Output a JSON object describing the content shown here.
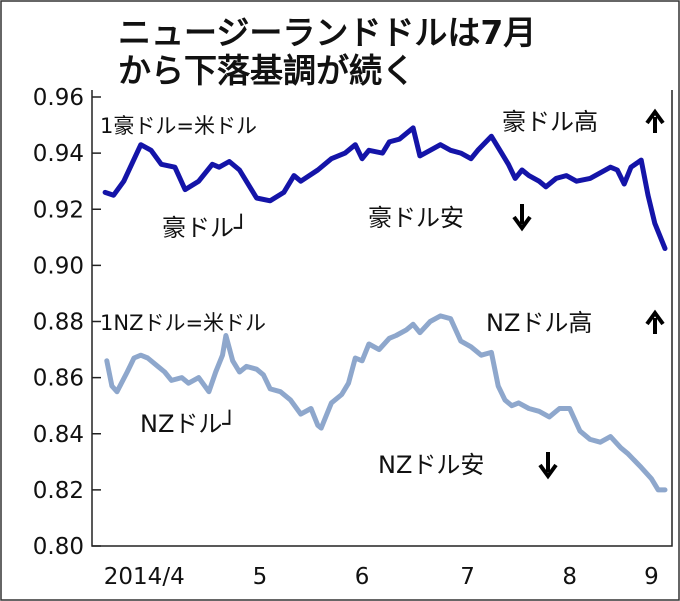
{
  "chart_data": {
    "type": "line",
    "title": [
      "ニュージーランドドルは7月",
      "から下落基調が続く"
    ],
    "xlabel": "",
    "ylabel": "",
    "x_unit": "days since 2014/4/1 (approx.)",
    "xlim": [
      0,
      168
    ],
    "ylim": [
      0.8,
      0.96
    ],
    "yticks": [
      "0.96",
      "0.94",
      "0.92",
      "0.90",
      "0.88",
      "0.86",
      "0.84",
      "0.82",
      "0.80"
    ],
    "xticks": [
      {
        "label": "2014/4",
        "day": 13
      },
      {
        "label": "5",
        "day": 47
      },
      {
        "label": "6",
        "day": 77
      },
      {
        "label": "7",
        "day": 108
      },
      {
        "label": "8",
        "day": 138
      },
      {
        "label": "9",
        "day": 162
      }
    ],
    "grid": false,
    "colors": {
      "aud": "#1414a8",
      "nzd": "#8ea7cc"
    },
    "annotations": {
      "aud_unit": "1豪ドル=米ドル",
      "aud_label": "豪ドル┘",
      "aud_up": "豪ドル高",
      "aud_down": "豪ドル安",
      "nzd_unit": "1NZドル=米ドル",
      "nzd_label": "NZドル┘",
      "nzd_up": "NZドル高",
      "nzd_down": "NZドル安"
    },
    "series": [
      {
        "name": "豪ドル",
        "points": [
          [
            1.5,
            0.926
          ],
          [
            4,
            0.925
          ],
          [
            7,
            0.93
          ],
          [
            12,
            0.943
          ],
          [
            15,
            0.941
          ],
          [
            18,
            0.936
          ],
          [
            22,
            0.935
          ],
          [
            25,
            0.927
          ],
          [
            29,
            0.93
          ],
          [
            33,
            0.936
          ],
          [
            35,
            0.935
          ],
          [
            38,
            0.937
          ],
          [
            41,
            0.934
          ],
          [
            46,
            0.924
          ],
          [
            50,
            0.923
          ],
          [
            54,
            0.926
          ],
          [
            57,
            0.932
          ],
          [
            59,
            0.93
          ],
          [
            64,
            0.934
          ],
          [
            68,
            0.938
          ],
          [
            72,
            0.94
          ],
          [
            75,
            0.943
          ],
          [
            77,
            0.938
          ],
          [
            79,
            0.941
          ],
          [
            83,
            0.94
          ],
          [
            85,
            0.944
          ],
          [
            88,
            0.945
          ],
          [
            92,
            0.949
          ],
          [
            94,
            0.939
          ],
          [
            97,
            0.941
          ],
          [
            100,
            0.943
          ],
          [
            103,
            0.941
          ],
          [
            106,
            0.94
          ],
          [
            109,
            0.938
          ],
          [
            111,
            0.941
          ],
          [
            115,
            0.946
          ],
          [
            118,
            0.94
          ],
          [
            120,
            0.936
          ],
          [
            122,
            0.931
          ],
          [
            124,
            0.934
          ],
          [
            126,
            0.932
          ],
          [
            129,
            0.93
          ],
          [
            131,
            0.928
          ],
          [
            134,
            0.931
          ],
          [
            137,
            0.932
          ],
          [
            140,
            0.93
          ],
          [
            144,
            0.931
          ],
          [
            147,
            0.933
          ],
          [
            150,
            0.935
          ],
          [
            152,
            0.934
          ],
          [
            154,
            0.929
          ],
          [
            156,
            0.935
          ],
          [
            159,
            0.9375
          ],
          [
            161,
            0.925
          ],
          [
            163,
            0.915
          ],
          [
            166,
            0.906
          ]
        ]
      },
      {
        "name": "NZドル",
        "points": [
          [
            2,
            0.866
          ],
          [
            3.5,
            0.857
          ],
          [
            5,
            0.855
          ],
          [
            8,
            0.862
          ],
          [
            10,
            0.867
          ],
          [
            12,
            0.868
          ],
          [
            14,
            0.867
          ],
          [
            17,
            0.864
          ],
          [
            19,
            0.862
          ],
          [
            21,
            0.859
          ],
          [
            24,
            0.86
          ],
          [
            26,
            0.858
          ],
          [
            29,
            0.86
          ],
          [
            32,
            0.855
          ],
          [
            34,
            0.862
          ],
          [
            36,
            0.868
          ],
          [
            37,
            0.875
          ],
          [
            39,
            0.866
          ],
          [
            41,
            0.862
          ],
          [
            43,
            0.864
          ],
          [
            46,
            0.863
          ],
          [
            48,
            0.861
          ],
          [
            50,
            0.856
          ],
          [
            53,
            0.855
          ],
          [
            56,
            0.852
          ],
          [
            59,
            0.847
          ],
          [
            62,
            0.849
          ],
          [
            64,
            0.843
          ],
          [
            65,
            0.842
          ],
          [
            68,
            0.851
          ],
          [
            71,
            0.854
          ],
          [
            73,
            0.858
          ],
          [
            75,
            0.867
          ],
          [
            77,
            0.866
          ],
          [
            79,
            0.872
          ],
          [
            82,
            0.87
          ],
          [
            85,
            0.874
          ],
          [
            87,
            0.875
          ],
          [
            90,
            0.877
          ],
          [
            92,
            0.879
          ],
          [
            94,
            0.876
          ],
          [
            97,
            0.88
          ],
          [
            100,
            0.882
          ],
          [
            103,
            0.881
          ],
          [
            106,
            0.873
          ],
          [
            109,
            0.871
          ],
          [
            112,
            0.868
          ],
          [
            115,
            0.869
          ],
          [
            117,
            0.857
          ],
          [
            119,
            0.852
          ],
          [
            121,
            0.85
          ],
          [
            123,
            0.851
          ],
          [
            126,
            0.849
          ],
          [
            129,
            0.848
          ],
          [
            132,
            0.846
          ],
          [
            135,
            0.849
          ],
          [
            138,
            0.849
          ],
          [
            141,
            0.841
          ],
          [
            144,
            0.838
          ],
          [
            147,
            0.837
          ],
          [
            150,
            0.839
          ],
          [
            153,
            0.835
          ],
          [
            155,
            0.833
          ],
          [
            159,
            0.828
          ],
          [
            162,
            0.824
          ],
          [
            164,
            0.82
          ],
          [
            166,
            0.82
          ]
        ]
      }
    ]
  }
}
